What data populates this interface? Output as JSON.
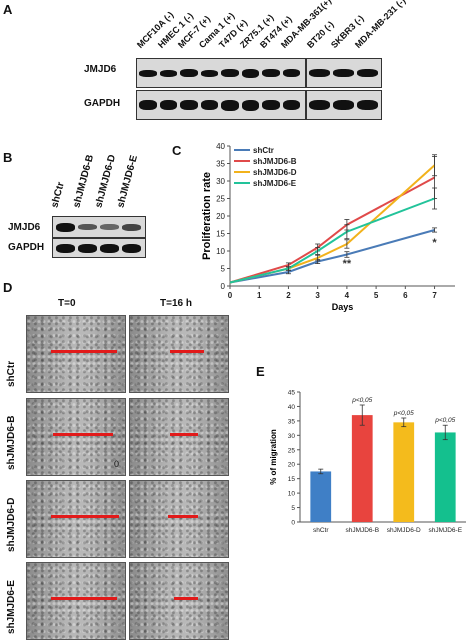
{
  "panels": {
    "a": "A",
    "b": "B",
    "c": "C",
    "d": "D",
    "e": "E"
  },
  "panel_a": {
    "lanes_left": [
      "MCF10A (-)",
      "HMEC 1 (-)",
      "MCF-7 (+)",
      "Cama 1 (+)",
      "T47D (+)",
      "ZR75.1 (+)",
      "BT474 (+)",
      "MDA-MB-361(+)"
    ],
    "lanes_right": [
      "BT20 (-)",
      "SKBR3 (-)",
      "MDA-MB-231 (-)"
    ],
    "row1": "JMJD6",
    "row2": "GAPDH"
  },
  "panel_b": {
    "lanes": [
      "shCtr",
      "shJMJD6-B",
      "shJMJD6-D",
      "shJMJD6-E"
    ],
    "row1": "JMJD6",
    "row2": "GAPDH"
  },
  "panel_d": {
    "col1": "T=0",
    "col2": "T=16 h",
    "rows": [
      "shCtr",
      "shJMJD6-B",
      "shJMJD6-D",
      "shJMJD6-E"
    ],
    "corner_mark": "0"
  },
  "chart_data": [
    {
      "type": "line",
      "xlabel": "Days",
      "ylabel": "Proliferation rate",
      "x": [
        0,
        2,
        3,
        4,
        7
      ],
      "xticks": [
        0,
        1,
        2,
        3,
        4,
        5,
        6,
        7
      ],
      "yticks": [
        0,
        5,
        10,
        15,
        20,
        25,
        30,
        35,
        40
      ],
      "xlim": [
        0,
        7.7
      ],
      "ylim": [
        0,
        40
      ],
      "grid": false,
      "legend_position": "top-left",
      "series": [
        {
          "name": "shCtr",
          "color": "#4a7bb7",
          "values": [
            1,
            4,
            7,
            9,
            16
          ],
          "errors": [
            0,
            0.5,
            0.6,
            0.8,
            0.6
          ]
        },
        {
          "name": "shJMJD6-B",
          "color": "#e04a4a",
          "values": [
            1,
            6,
            11,
            17.5,
            31
          ],
          "errors": [
            0,
            0.6,
            1,
            1.5,
            6
          ]
        },
        {
          "name": "shJMJD6-D",
          "color": "#f2b21b",
          "values": [
            1,
            5,
            8,
            12,
            34.5
          ],
          "errors": [
            0,
            0.5,
            0.8,
            1.2,
            3
          ]
        },
        {
          "name": "shJMJD6-E",
          "color": "#22c39a",
          "values": [
            1,
            5,
            10,
            15.5,
            25
          ],
          "errors": [
            0,
            0.5,
            1,
            2,
            3
          ]
        }
      ],
      "annotations": [
        {
          "text": "**",
          "x": 4,
          "y": 5.5
        },
        {
          "text": "*",
          "x": 7,
          "y": 11.5
        }
      ]
    },
    {
      "type": "bar",
      "ylabel": "% of migration",
      "categories": [
        "shCtr",
        "shJMJD6-B",
        "shJMJD6-D",
        "shJMJD6-E"
      ],
      "values": [
        17.5,
        37,
        34.5,
        31
      ],
      "errors": [
        0.8,
        3.5,
        1.5,
        2.5
      ],
      "colors": [
        "#3f7fc6",
        "#e8443e",
        "#f4bb1c",
        "#14c08e"
      ],
      "bar_labels": [
        "",
        "p<0,05",
        "p<0,05",
        "p<0,05"
      ],
      "yticks": [
        0,
        5,
        10,
        15,
        20,
        25,
        30,
        35,
        40,
        45
      ],
      "ylim": [
        0,
        45
      ],
      "grid": false
    }
  ]
}
